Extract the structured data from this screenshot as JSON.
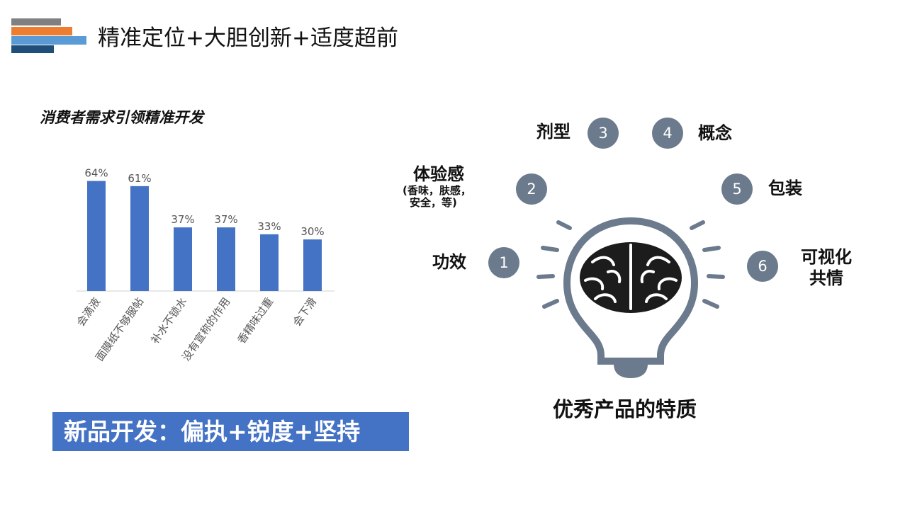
{
  "page_title": "精准定位+大胆创新+适度超前",
  "colors": {
    "stripe_gray": "#808080",
    "stripe_orange": "#ed7d31",
    "stripe_light_blue": "#5b9bd5",
    "stripe_navy": "#1f4e79",
    "bar_blue": "#4472c4",
    "banner_blue": "#4472c4",
    "circle_gray": "#6b7a8c"
  },
  "chart_data": {
    "type": "bar",
    "title": "消费者需求引领精准开发",
    "categories": [
      "会滴液",
      "面膜纸不够服帖",
      "补水不锁水",
      "没有宣称的作用",
      "香精味过重",
      "会下滑"
    ],
    "values": [
      64,
      61,
      37,
      37,
      33,
      30
    ],
    "value_labels": [
      "64%",
      "61%",
      "37%",
      "37%",
      "33%",
      "30%"
    ],
    "xlabel": "",
    "ylabel": "",
    "ylim": [
      0,
      70
    ],
    "grid": false
  },
  "banner_text": "新品开发：偏执+锐度+坚持",
  "features": [
    {
      "num": "1",
      "label": "功效",
      "sub": ""
    },
    {
      "num": "2",
      "label": "体验感",
      "sub": "(香味，肤感，",
      "sub2": "安全，等)"
    },
    {
      "num": "3",
      "label": "剂型",
      "sub": ""
    },
    {
      "num": "4",
      "label": "概念",
      "sub": ""
    },
    {
      "num": "5",
      "label": "包装",
      "sub": ""
    },
    {
      "num": "6",
      "label": "可视化",
      "sub": "共情"
    }
  ],
  "icons": {
    "center": "lightbulb-brain-icon"
  },
  "caption": "优秀产品的特质"
}
